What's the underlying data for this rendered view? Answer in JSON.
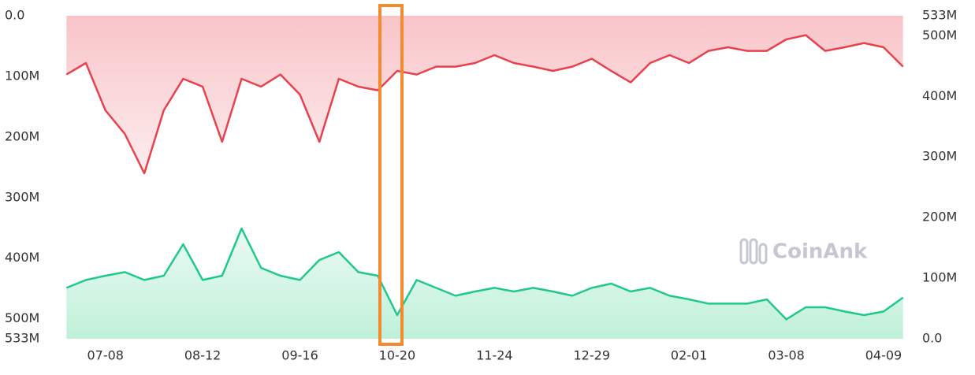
{
  "chart_data": {
    "type": "line",
    "watermark": "CoinAnk",
    "categories": [
      null,
      null,
      "07-08",
      null,
      null,
      null,
      null,
      "08-12",
      null,
      null,
      null,
      null,
      "09-16",
      null,
      null,
      null,
      null,
      "10-20",
      null,
      null,
      null,
      null,
      "11-24",
      null,
      null,
      null,
      null,
      "12-29",
      null,
      null,
      null,
      null,
      "02-01",
      null,
      null,
      null,
      null,
      "03-08",
      null,
      null,
      null,
      null,
      "04-09",
      null
    ],
    "ylim": [
      0,
      533000000
    ],
    "y_inverted": true,
    "yticks": [
      {
        "value": 0,
        "label": "0.0"
      },
      {
        "value": 100000000,
        "label": "100M"
      },
      {
        "value": 200000000,
        "label": "200M"
      },
      {
        "value": 300000000,
        "label": "300M"
      },
      {
        "value": 400000000,
        "label": "400M"
      },
      {
        "value": 500000000,
        "label": "500M"
      },
      {
        "value": 533000000,
        "label": "533M"
      }
    ],
    "y2lim": [
      0,
      533000000
    ],
    "y2ticks": [
      {
        "value": 0,
        "label": "0.0"
      },
      {
        "value": 100000000,
        "label": "100M"
      },
      {
        "value": 200000000,
        "label": "200M"
      },
      {
        "value": 300000000,
        "label": "300M"
      },
      {
        "value": 400000000,
        "label": "400M"
      },
      {
        "value": 500000000,
        "label": "500M"
      },
      {
        "value": 533000000,
        "label": "533M"
      }
    ],
    "series": [
      {
        "color": "#e8414e",
        "fill": "#f8c4c8",
        "values": [
          97000000,
          78000000,
          156000000,
          195000000,
          260000000,
          156000000,
          104000000,
          117000000,
          208000000,
          104000000,
          117000000,
          97000000,
          130000000,
          208000000,
          104000000,
          117000000,
          123000000,
          91000000,
          97000000,
          84000000,
          84000000,
          78000000,
          65000000,
          78000000,
          84000000,
          91000000,
          84000000,
          71000000,
          91000000,
          110000000,
          78000000,
          65000000,
          78000000,
          58000000,
          52000000,
          58000000,
          58000000,
          39000000,
          32000000,
          58000000,
          52000000,
          45000000,
          52000000,
          84000000
        ]
      },
      {
        "color": "#1fc98a",
        "fill": "#bff0d9",
        "axis": "y2",
        "values": [
          84000000,
          97000000,
          104000000,
          110000000,
          97000000,
          104000000,
          156000000,
          97000000,
          104000000,
          182000000,
          117000000,
          104000000,
          97000000,
          130000000,
          143000000,
          110000000,
          104000000,
          39000000,
          97000000,
          84000000,
          71000000,
          78000000,
          84000000,
          78000000,
          84000000,
          78000000,
          71000000,
          84000000,
          91000000,
          78000000,
          84000000,
          71000000,
          65000000,
          58000000,
          58000000,
          58000000,
          65000000,
          32000000,
          52000000,
          52000000,
          45000000,
          39000000,
          45000000,
          68000000
        ]
      }
    ]
  }
}
